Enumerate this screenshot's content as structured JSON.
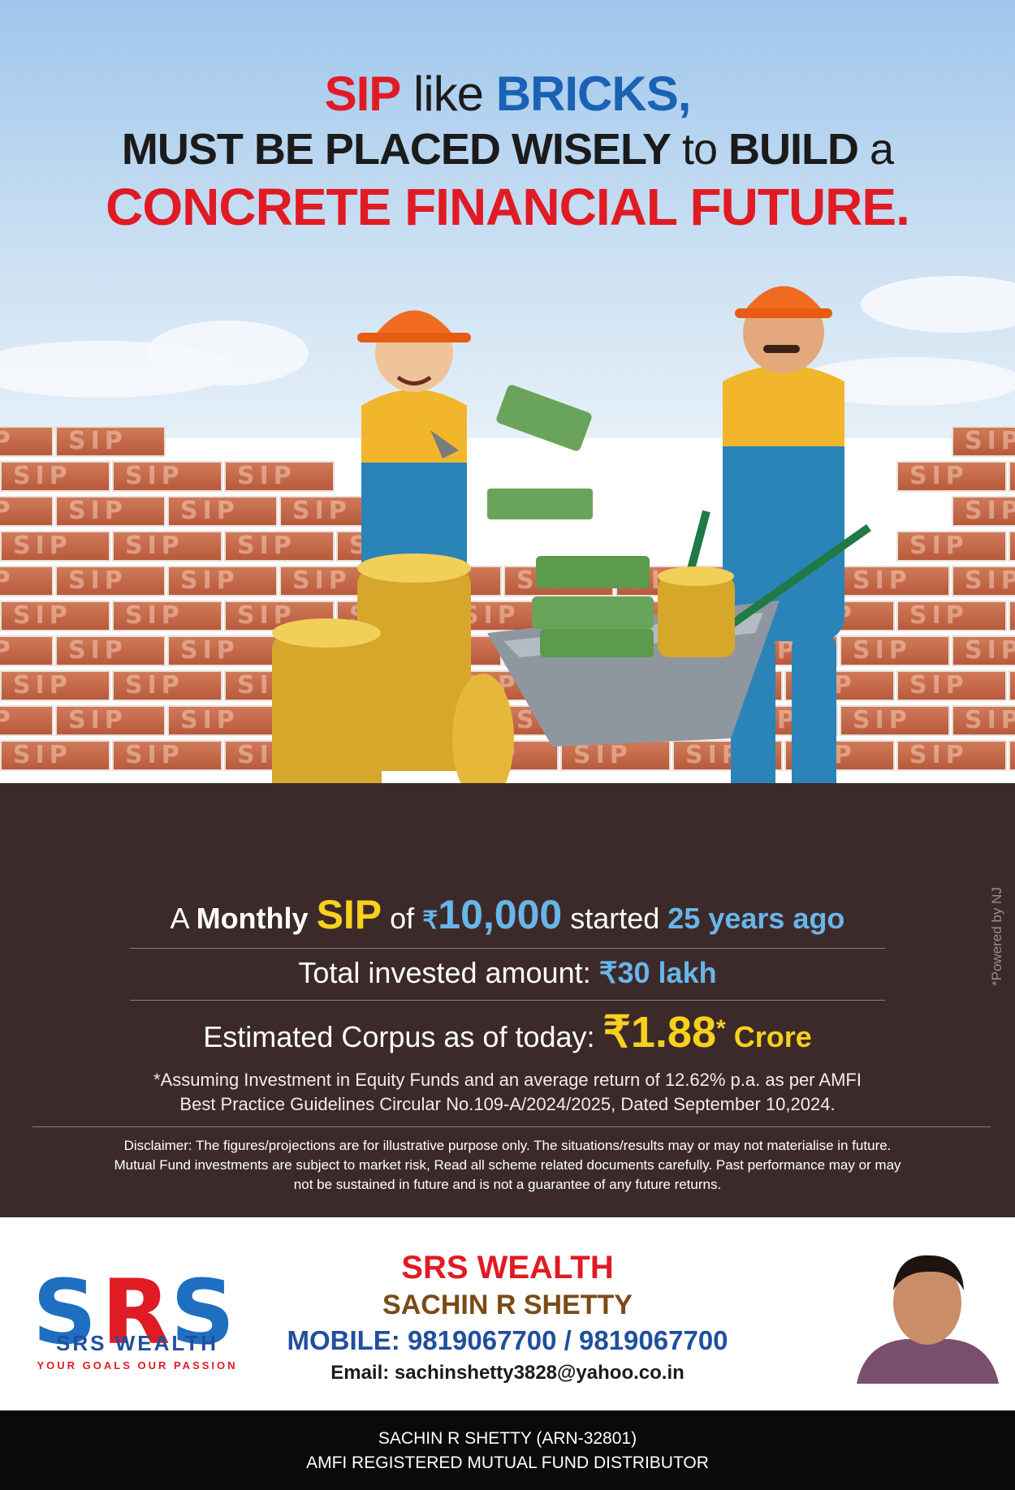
{
  "headline": {
    "line1_a": "SIP",
    "line1_b": " like ",
    "line1_c": "BRICKS,",
    "line2_a": "MUST BE PLACED WISELY",
    "line2_b": " to ",
    "line2_c": "BUILD",
    "line2_d": " a",
    "line3": "CONCRETE FINANCIAL FUTURE."
  },
  "wall": {
    "brick_text": "SIP"
  },
  "stats": {
    "line1": {
      "a": "A ",
      "b": "Monthly ",
      "c": "SIP",
      "d": " of ",
      "e": "₹",
      "f": "10,000",
      "g": " started ",
      "h": "25 years ago"
    },
    "line2": {
      "a": "Total invested amount: ",
      "b": "₹30 lakh"
    },
    "line3": {
      "a": "Estimated Corpus as of today: ",
      "b": "₹1.88",
      "c": "*",
      "d": " Crore"
    },
    "note1": "*Assuming Investment in Equity Funds and an average return of 12.62% p.a. as per AMFI",
    "note2": "Best Practice  Guidelines Circular No.109-A/2024/2025, Dated September 10,2024."
  },
  "disclaimer": {
    "line1": "Disclaimer: The figures/projections are for illustrative purpose only. The situations/results may or may not materialise in future.",
    "line2": "Mutual Fund investments are subject to market risk, Read all scheme related documents carefully. Past performance may or may",
    "line3": "not be sustained in future and is not a guarantee of any future returns."
  },
  "powered_by": "*Powered by NJ",
  "logo": {
    "name": "SRS WEALTH",
    "tagline": "YOUR GOALS OUR PASSION"
  },
  "contact": {
    "firm": "SRS WEALTH",
    "person": "SACHIN R SHETTY",
    "mobile": "MOBILE: 9819067700 / 9819067700",
    "email": "Email: sachinshetty3828@yahoo.co.in"
  },
  "footer": {
    "line1": "SACHIN R SHETTY (ARN-32801)",
    "line2": "AMFI REGISTERED MUTUAL FUND DISTRIBUTOR"
  },
  "colors": {
    "red": "#e01b24",
    "blue": "#1a62b4",
    "panel": "#3c2a2a",
    "yellow": "#f7d11b",
    "light_blue": "#67b6ea"
  }
}
